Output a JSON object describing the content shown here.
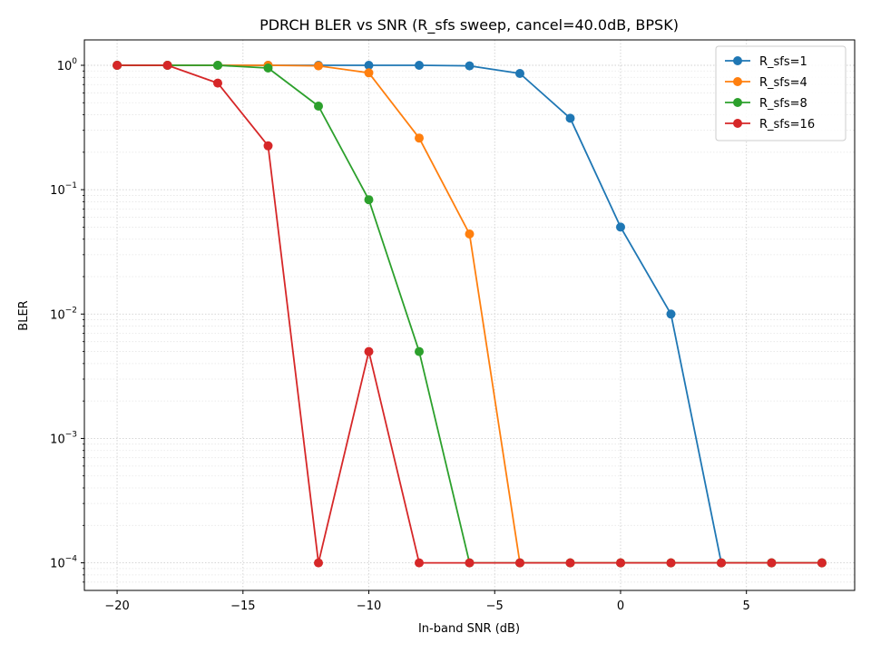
{
  "chart_data": {
    "type": "line",
    "title": "PDRCH BLER vs SNR (R_sfs sweep, cancel=40.0dB, BPSK)",
    "xlabel": "In-band SNR (dB)",
    "ylabel": "BLER",
    "yscale": "log",
    "xlim": [
      -21.3,
      9.3
    ],
    "ylim": [
      6e-05,
      1.6
    ],
    "xticks": [
      -20,
      -15,
      -10,
      -5,
      0,
      5
    ],
    "xtick_labels": [
      "−20",
      "−15",
      "−10",
      "−5",
      "0",
      "5"
    ],
    "yticks": [
      0.0001,
      0.001,
      0.01,
      0.1,
      1
    ],
    "ytick_labels": [
      {
        "base": "10",
        "exp": "−4"
      },
      {
        "base": "10",
        "exp": "−3"
      },
      {
        "base": "10",
        "exp": "−2"
      },
      {
        "base": "10",
        "exp": "−1"
      },
      {
        "base": "10",
        "exp": "0"
      }
    ],
    "grid": true,
    "legend_position": "top-right",
    "x": [
      -20,
      -18,
      -16,
      -14,
      -12,
      -10,
      -8,
      -6,
      -4,
      -2,
      0,
      2,
      4,
      6,
      8
    ],
    "series": [
      {
        "name": "R_sfs=1",
        "color": "#1f77b4",
        "values": [
          1,
          1,
          1,
          1,
          1,
          1,
          1,
          0.99,
          0.86,
          0.375,
          0.05,
          0.01,
          0.0001,
          0.0001,
          0.0001
        ]
      },
      {
        "name": "R_sfs=4",
        "color": "#ff7f0e",
        "values": [
          1,
          1,
          1,
          1,
          0.99,
          0.87,
          0.26,
          0.044,
          0.0001,
          0.0001,
          0.0001,
          0.0001,
          0.0001,
          0.0001,
          0.0001
        ]
      },
      {
        "name": "R_sfs=8",
        "color": "#2ca02c",
        "values": [
          1,
          1,
          1,
          0.95,
          0.47,
          0.083,
          0.005,
          0.0001,
          0.0001,
          0.0001,
          0.0001,
          0.0001,
          0.0001,
          0.0001,
          0.0001
        ]
      },
      {
        "name": "R_sfs=16",
        "color": "#d62728",
        "values": [
          1,
          1,
          0.72,
          0.225,
          0.0001,
          0.005,
          0.0001,
          0.0001,
          0.0001,
          0.0001,
          0.0001,
          0.0001,
          0.0001,
          0.0001,
          0.0001
        ]
      }
    ]
  }
}
